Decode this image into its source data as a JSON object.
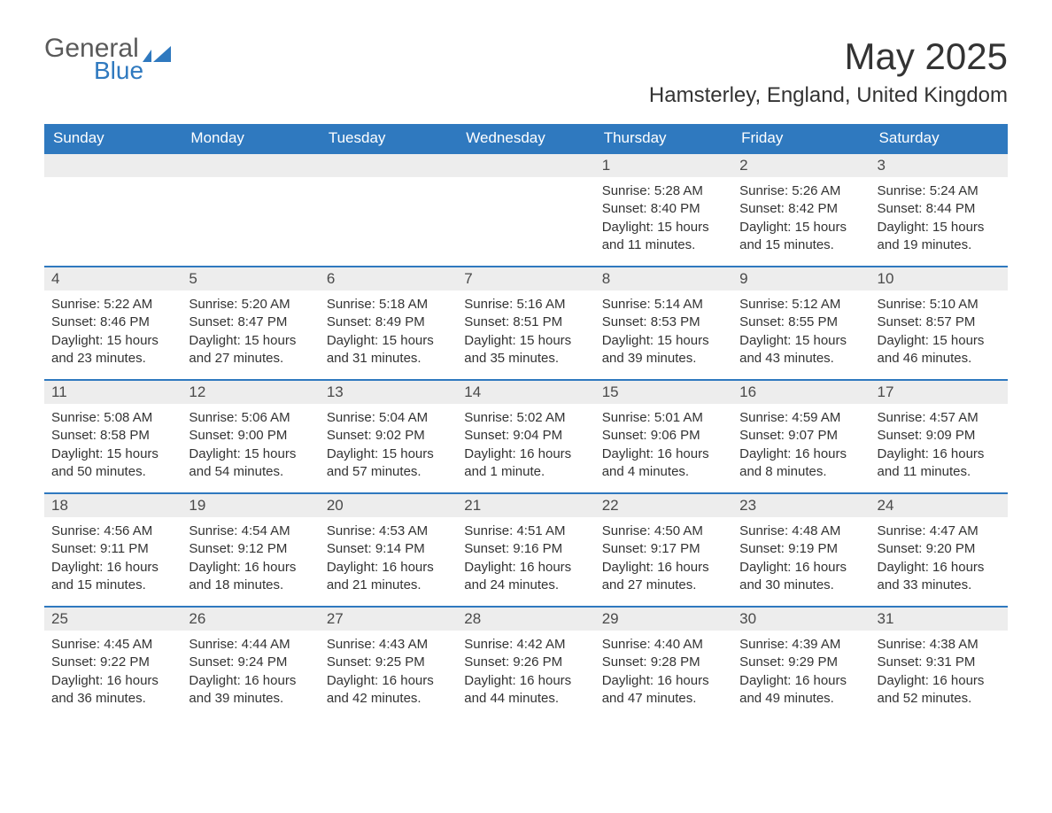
{
  "logo": {
    "word1": "General",
    "word2": "Blue",
    "word1_color": "#5a5a5a",
    "word2_color": "#2f79bf",
    "flag_color": "#2f79bf"
  },
  "title": "May 2025",
  "location": "Hamsterley, England, United Kingdom",
  "colors": {
    "header_bg": "#2f79bf",
    "header_text": "#ffffff",
    "daynum_bg": "#ededed",
    "daynum_text": "#4a4a4a",
    "body_text": "#333333",
    "row_border": "#2f79bf",
    "page_bg": "#ffffff"
  },
  "fonts": {
    "month_title_size": 42,
    "location_size": 24,
    "header_size": 17,
    "daynum_size": 17,
    "body_size": 15
  },
  "days_of_week": [
    "Sunday",
    "Monday",
    "Tuesday",
    "Wednesday",
    "Thursday",
    "Friday",
    "Saturday"
  ],
  "grid": {
    "rows": 5,
    "cols": 7,
    "first_day_col": 4,
    "days_in_month": 31
  },
  "days": {
    "1": {
      "sunrise": "5:28 AM",
      "sunset": "8:40 PM",
      "daylight": "15 hours and 11 minutes."
    },
    "2": {
      "sunrise": "5:26 AM",
      "sunset": "8:42 PM",
      "daylight": "15 hours and 15 minutes."
    },
    "3": {
      "sunrise": "5:24 AM",
      "sunset": "8:44 PM",
      "daylight": "15 hours and 19 minutes."
    },
    "4": {
      "sunrise": "5:22 AM",
      "sunset": "8:46 PM",
      "daylight": "15 hours and 23 minutes."
    },
    "5": {
      "sunrise": "5:20 AM",
      "sunset": "8:47 PM",
      "daylight": "15 hours and 27 minutes."
    },
    "6": {
      "sunrise": "5:18 AM",
      "sunset": "8:49 PM",
      "daylight": "15 hours and 31 minutes."
    },
    "7": {
      "sunrise": "5:16 AM",
      "sunset": "8:51 PM",
      "daylight": "15 hours and 35 minutes."
    },
    "8": {
      "sunrise": "5:14 AM",
      "sunset": "8:53 PM",
      "daylight": "15 hours and 39 minutes."
    },
    "9": {
      "sunrise": "5:12 AM",
      "sunset": "8:55 PM",
      "daylight": "15 hours and 43 minutes."
    },
    "10": {
      "sunrise": "5:10 AM",
      "sunset": "8:57 PM",
      "daylight": "15 hours and 46 minutes."
    },
    "11": {
      "sunrise": "5:08 AM",
      "sunset": "8:58 PM",
      "daylight": "15 hours and 50 minutes."
    },
    "12": {
      "sunrise": "5:06 AM",
      "sunset": "9:00 PM",
      "daylight": "15 hours and 54 minutes."
    },
    "13": {
      "sunrise": "5:04 AM",
      "sunset": "9:02 PM",
      "daylight": "15 hours and 57 minutes."
    },
    "14": {
      "sunrise": "5:02 AM",
      "sunset": "9:04 PM",
      "daylight": "16 hours and 1 minute."
    },
    "15": {
      "sunrise": "5:01 AM",
      "sunset": "9:06 PM",
      "daylight": "16 hours and 4 minutes."
    },
    "16": {
      "sunrise": "4:59 AM",
      "sunset": "9:07 PM",
      "daylight": "16 hours and 8 minutes."
    },
    "17": {
      "sunrise": "4:57 AM",
      "sunset": "9:09 PM",
      "daylight": "16 hours and 11 minutes."
    },
    "18": {
      "sunrise": "4:56 AM",
      "sunset": "9:11 PM",
      "daylight": "16 hours and 15 minutes."
    },
    "19": {
      "sunrise": "4:54 AM",
      "sunset": "9:12 PM",
      "daylight": "16 hours and 18 minutes."
    },
    "20": {
      "sunrise": "4:53 AM",
      "sunset": "9:14 PM",
      "daylight": "16 hours and 21 minutes."
    },
    "21": {
      "sunrise": "4:51 AM",
      "sunset": "9:16 PM",
      "daylight": "16 hours and 24 minutes."
    },
    "22": {
      "sunrise": "4:50 AM",
      "sunset": "9:17 PM",
      "daylight": "16 hours and 27 minutes."
    },
    "23": {
      "sunrise": "4:48 AM",
      "sunset": "9:19 PM",
      "daylight": "16 hours and 30 minutes."
    },
    "24": {
      "sunrise": "4:47 AM",
      "sunset": "9:20 PM",
      "daylight": "16 hours and 33 minutes."
    },
    "25": {
      "sunrise": "4:45 AM",
      "sunset": "9:22 PM",
      "daylight": "16 hours and 36 minutes."
    },
    "26": {
      "sunrise": "4:44 AM",
      "sunset": "9:24 PM",
      "daylight": "16 hours and 39 minutes."
    },
    "27": {
      "sunrise": "4:43 AM",
      "sunset": "9:25 PM",
      "daylight": "16 hours and 42 minutes."
    },
    "28": {
      "sunrise": "4:42 AM",
      "sunset": "9:26 PM",
      "daylight": "16 hours and 44 minutes."
    },
    "29": {
      "sunrise": "4:40 AM",
      "sunset": "9:28 PM",
      "daylight": "16 hours and 47 minutes."
    },
    "30": {
      "sunrise": "4:39 AM",
      "sunset": "9:29 PM",
      "daylight": "16 hours and 49 minutes."
    },
    "31": {
      "sunrise": "4:38 AM",
      "sunset": "9:31 PM",
      "daylight": "16 hours and 52 minutes."
    }
  },
  "labels": {
    "sunrise": "Sunrise: ",
    "sunset": "Sunset: ",
    "daylight": "Daylight: "
  }
}
